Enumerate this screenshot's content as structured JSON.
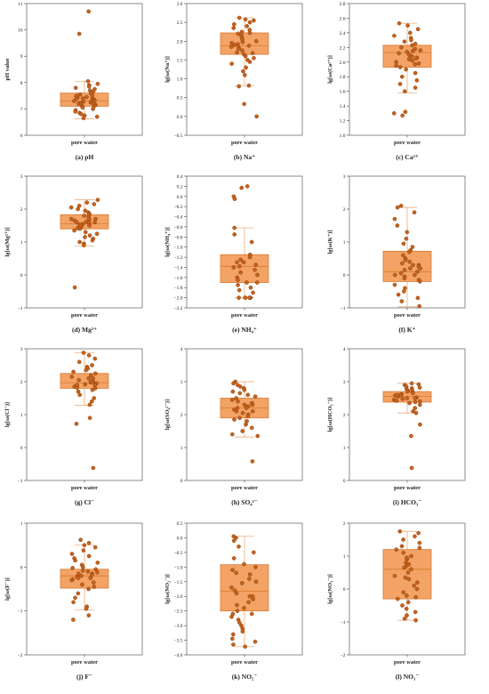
{
  "colors": {
    "box_fill": "#f2a365",
    "box_edge": "#d97a32",
    "point_fill": "#c7611b",
    "point_edge": "#7a3808"
  },
  "chart_data": [
    {
      "type": "box",
      "caption": "(a) pH",
      "ylabel": "pH value",
      "xlabel": "pore water",
      "ylim": [
        6,
        11
      ],
      "ticks": [
        6,
        7,
        8,
        9,
        10,
        11
      ],
      "ticklabels": [
        "6",
        "7",
        "8",
        "9",
        "10",
        "11"
      ],
      "whisker_low": 6.62,
      "q1": 7.1,
      "median": 7.3,
      "q3": 7.6,
      "whisker_high": 8.05,
      "points": [
        10.7,
        9.85,
        8.05,
        7.95,
        7.9,
        7.85,
        7.8,
        7.75,
        7.7,
        7.65,
        7.6,
        7.55,
        7.5,
        7.48,
        7.45,
        7.42,
        7.4,
        7.38,
        7.35,
        7.32,
        7.3,
        7.28,
        7.25,
        7.22,
        7.2,
        7.18,
        7.15,
        7.12,
        7.1,
        7.05,
        7.0,
        6.95,
        6.9,
        6.85,
        6.8,
        6.75,
        6.7,
        6.65,
        7.6,
        7.5,
        7.4,
        7.3,
        7.2
      ]
    },
    {
      "type": "box",
      "caption": "(b) Na⁺",
      "ylabel": "lg[ω(Na⁺)]",
      "xlabel": "pore water",
      "ylim": [
        -0.5,
        3.0
      ],
      "ticks": [
        -0.5,
        0.0,
        0.5,
        1.0,
        1.5,
        2.0,
        2.5,
        3.0
      ],
      "ticklabels": [
        "−0.5",
        "0.0",
        "0.5",
        "1.0",
        "1.5",
        "2.0",
        "2.5",
        "3.0"
      ],
      "whisker_low": 0.82,
      "q1": 1.65,
      "median": 1.88,
      "q3": 2.22,
      "whisker_high": 2.62,
      "points": [
        2.62,
        2.58,
        2.55,
        2.5,
        2.45,
        2.4,
        2.35,
        2.3,
        2.25,
        2.22,
        2.2,
        2.15,
        2.1,
        2.05,
        2.0,
        1.98,
        1.95,
        1.92,
        1.9,
        1.88,
        1.85,
        1.82,
        1.8,
        1.75,
        1.7,
        1.68,
        1.65,
        1.6,
        1.55,
        1.5,
        1.45,
        1.4,
        1.3,
        1.2,
        1.1,
        0.82,
        0.8,
        0.33,
        0.0
      ]
    },
    {
      "type": "box",
      "caption": "(c) Ca²⁺",
      "ylabel": "lg[ω(Ca²⁺)]",
      "xlabel": "pore water",
      "ylim": [
        1.0,
        2.8
      ],
      "ticks": [
        1.0,
        1.2,
        1.4,
        1.6,
        1.8,
        2.0,
        2.2,
        2.4,
        2.6,
        2.8
      ],
      "ticklabels": [
        "1.0",
        "1.2",
        "1.4",
        "1.6",
        "1.8",
        "2.0",
        "2.2",
        "2.4",
        "2.6",
        "2.8"
      ],
      "whisker_low": 1.58,
      "q1": 1.93,
      "median": 2.13,
      "q3": 2.23,
      "whisker_high": 2.53,
      "points": [
        2.53,
        2.5,
        2.45,
        2.4,
        2.36,
        2.33,
        2.3,
        2.28,
        2.25,
        2.23,
        2.2,
        2.18,
        2.16,
        2.14,
        2.12,
        2.1,
        2.08,
        2.06,
        2.04,
        2.02,
        2.0,
        1.98,
        1.95,
        1.93,
        1.9,
        1.85,
        1.8,
        1.75,
        1.7,
        1.65,
        1.6,
        1.32,
        1.3,
        1.27,
        2.15,
        2.05,
        1.97
      ]
    },
    {
      "type": "box",
      "caption": "(d) Mg²⁺",
      "ylabel": "lg[ω(Mg²⁺)]",
      "xlabel": "pore water",
      "ylim": [
        -1,
        3
      ],
      "ticks": [
        -1,
        0,
        1,
        2,
        3
      ],
      "ticklabels": [
        "−1",
        "0",
        "1",
        "2",
        "3"
      ],
      "whisker_low": 0.88,
      "q1": 1.4,
      "median": 1.55,
      "q3": 1.83,
      "whisker_high": 2.28,
      "points": [
        2.28,
        2.2,
        2.15,
        2.1,
        2.05,
        2.0,
        1.95,
        1.9,
        1.85,
        1.82,
        1.8,
        1.75,
        1.7,
        1.68,
        1.65,
        1.62,
        1.6,
        1.58,
        1.55,
        1.52,
        1.5,
        1.48,
        1.45,
        1.42,
        1.4,
        1.35,
        1.3,
        1.25,
        1.2,
        1.15,
        1.1,
        1.05,
        1.0,
        0.95,
        0.9,
        -0.38,
        1.6,
        1.5,
        1.7
      ]
    },
    {
      "type": "box",
      "caption": "(e) NH₄⁺",
      "ylabel": "lg[ω(NH₄⁺)]",
      "xlabel": "pore water",
      "ylim": [
        -2.2,
        0.4
      ],
      "ticks": [
        -2.2,
        -2.0,
        -1.8,
        -1.6,
        -1.4,
        -1.2,
        -1.0,
        -0.8,
        -0.6,
        -0.4,
        -0.2,
        0.0,
        0.2,
        0.4
      ],
      "ticklabels": [
        "−2.2",
        "−2.0",
        "−1.8",
        "−1.6",
        "−1.4",
        "−1.2",
        "−1.0",
        "−0.8",
        "−0.6",
        "−0.4",
        "−0.2",
        "0.0",
        "0.2",
        "0.4"
      ],
      "whisker_low": -2.0,
      "q1": -1.7,
      "median": -1.38,
      "q3": -1.15,
      "whisker_high": -0.62,
      "points": [
        0.2,
        0.17,
        0.0,
        -0.05,
        -0.62,
        -0.75,
        -0.9,
        -1.15,
        -1.2,
        -1.25,
        -1.3,
        -1.3,
        -1.35,
        -1.38,
        -1.4,
        -1.45,
        -1.5,
        -1.55,
        -1.6,
        -1.65,
        -1.7,
        -1.7,
        -1.75,
        -1.8,
        -1.85,
        -1.9,
        -2.0,
        -2.0,
        -2.0,
        -2.0,
        -2.0,
        -2.0
      ]
    },
    {
      "type": "box",
      "caption": "(f) K⁺",
      "ylabel": "lg[ω(K⁺)]",
      "xlabel": "pore water",
      "ylim": [
        -1,
        3
      ],
      "ticks": [
        -1,
        0,
        1,
        2,
        3
      ],
      "ticklabels": [
        "−1",
        "0",
        "1",
        "2",
        "3"
      ],
      "whisker_low": -0.97,
      "q1": -0.2,
      "median": 0.1,
      "q3": 0.72,
      "whisker_high": 2.05,
      "points": [
        2.1,
        2.05,
        1.9,
        1.7,
        1.5,
        1.3,
        1.1,
        0.95,
        0.85,
        0.75,
        0.7,
        0.6,
        0.5,
        0.45,
        0.4,
        0.35,
        0.3,
        0.25,
        0.2,
        0.15,
        0.1,
        0.05,
        0.0,
        -0.05,
        -0.1,
        -0.15,
        -0.2,
        -0.3,
        -0.4,
        -0.5,
        -0.6,
        -0.7,
        -0.8,
        -0.95,
        0.3,
        0.2,
        0.0
      ]
    },
    {
      "type": "box",
      "caption": "(g) Cl⁻",
      "ylabel": "lg[ω(Cl⁻)]",
      "xlabel": "pore water",
      "ylim": [
        -1,
        3
      ],
      "ticks": [
        -1,
        0,
        1,
        2,
        3
      ],
      "ticklabels": [
        "−1",
        "0",
        "1",
        "2",
        "3"
      ],
      "whisker_low": 1.28,
      "q1": 1.8,
      "median": 1.97,
      "q3": 2.25,
      "whisker_high": 2.88,
      "points": [
        2.88,
        2.8,
        2.7,
        2.6,
        2.5,
        2.45,
        2.4,
        2.35,
        2.3,
        2.25,
        2.2,
        2.15,
        2.1,
        2.05,
        2.0,
        1.98,
        1.95,
        1.92,
        1.9,
        1.88,
        1.85,
        1.82,
        1.8,
        1.75,
        1.7,
        1.6,
        1.5,
        1.4,
        1.3,
        0.9,
        0.72,
        -0.62,
        2.1,
        2.0,
        1.9
      ]
    },
    {
      "type": "box",
      "caption": "(h) SO₄²⁻",
      "ylabel": "lg[ω(SO₄²⁻)]",
      "xlabel": "pore water",
      "ylim": [
        0,
        4
      ],
      "ticks": [
        0,
        1,
        2,
        3,
        4
      ],
      "ticklabels": [
        "0",
        "1",
        "2",
        "3",
        "4"
      ],
      "whisker_low": 1.32,
      "q1": 1.9,
      "median": 2.2,
      "q3": 2.5,
      "whisker_high": 3.0,
      "points": [
        3.0,
        2.95,
        2.9,
        2.85,
        2.8,
        2.75,
        2.7,
        2.65,
        2.6,
        2.55,
        2.5,
        2.45,
        2.4,
        2.35,
        2.3,
        2.25,
        2.2,
        2.15,
        2.1,
        2.05,
        2.0,
        1.95,
        1.9,
        1.85,
        1.8,
        1.7,
        1.6,
        1.5,
        1.4,
        1.35,
        0.58,
        2.3,
        2.2,
        2.1
      ]
    },
    {
      "type": "box",
      "caption": "(i) HCO₃⁻",
      "ylabel": "lg[ω(HCO₃⁻)]",
      "xlabel": "pore water",
      "ylim": [
        0,
        4
      ],
      "ticks": [
        0,
        1,
        2,
        3,
        4
      ],
      "ticklabels": [
        "0",
        "1",
        "2",
        "3",
        "4"
      ],
      "whisker_low": 2.05,
      "q1": 2.38,
      "median": 2.55,
      "q3": 2.7,
      "whisker_high": 2.95,
      "points": [
        2.95,
        2.92,
        2.9,
        2.85,
        2.82,
        2.8,
        2.78,
        2.75,
        2.72,
        2.7,
        2.68,
        2.65,
        2.62,
        2.6,
        2.58,
        2.55,
        2.52,
        2.5,
        2.48,
        2.45,
        2.42,
        2.4,
        2.38,
        2.35,
        2.3,
        2.2,
        2.1,
        2.05,
        1.7,
        1.35,
        0.38,
        2.6,
        2.5
      ]
    },
    {
      "type": "box",
      "caption": "(j) F⁻",
      "ylabel": "lg[ω(F⁻)]",
      "xlabel": "pore water",
      "ylim": [
        -2,
        1
      ],
      "ticks": [
        -2,
        -1,
        0,
        1
      ],
      "ticklabels": [
        "−2",
        "−1",
        "0",
        "1"
      ],
      "whisker_low": -0.98,
      "q1": -0.48,
      "median": -0.2,
      "q3": -0.05,
      "whisker_high": 0.5,
      "points": [
        0.62,
        0.55,
        0.5,
        0.45,
        0.38,
        0.3,
        0.25,
        0.2,
        0.15,
        0.1,
        0.05,
        0.0,
        -0.02,
        -0.05,
        -0.08,
        -0.1,
        -0.12,
        -0.15,
        -0.18,
        -0.2,
        -0.22,
        -0.25,
        -0.28,
        -0.3,
        -0.35,
        -0.4,
        -0.45,
        -0.5,
        -0.6,
        -0.7,
        -0.8,
        -0.9,
        -0.95,
        -1.1,
        -1.2,
        -0.15,
        -0.25
      ]
    },
    {
      "type": "box",
      "caption": "(k) NO₂⁻",
      "ylabel": "lg[ω(NO₂⁻)]",
      "xlabel": "pore water",
      "ylim": [
        -4.0,
        0.5
      ],
      "ticks": [
        -4.0,
        -3.5,
        -3.0,
        -2.5,
        -2.0,
        -1.5,
        -1.0,
        -0.5,
        0.0,
        0.5
      ],
      "ticklabels": [
        "−4.0",
        "−3.5",
        "−3.0",
        "−2.5",
        "−2.0",
        "−1.5",
        "−1.0",
        "−0.5",
        "0.0",
        "0.5"
      ],
      "whisker_low": -3.72,
      "q1": -2.5,
      "median": -1.82,
      "q3": -0.92,
      "whisker_high": 0.05,
      "points": [
        0.05,
        0.0,
        -0.1,
        -0.3,
        -0.5,
        -0.7,
        -0.9,
        -1.0,
        -1.1,
        -1.25,
        -1.4,
        -1.55,
        -1.7,
        -1.8,
        -1.9,
        -2.0,
        -2.1,
        -2.2,
        -2.3,
        -2.4,
        -2.5,
        -2.6,
        -2.7,
        -2.8,
        -2.9,
        -3.0,
        -3.1,
        -3.2,
        -3.3,
        -3.45,
        -3.55,
        -3.65,
        -3.72,
        -1.5,
        -2.0,
        -1.2,
        -2.6
      ]
    },
    {
      "type": "box",
      "caption": "(l) NO₃⁻",
      "ylabel": "lg[ω(NO₃⁻)]",
      "xlabel": "pore water",
      "ylim": [
        -2,
        2
      ],
      "ticks": [
        -2,
        -1,
        0,
        1,
        2
      ],
      "ticklabels": [
        "−2",
        "−1",
        "0",
        "1",
        "2"
      ],
      "whisker_low": -0.95,
      "q1": -0.3,
      "median": 0.6,
      "q3": 1.2,
      "whisker_high": 1.75,
      "points": [
        1.75,
        1.7,
        1.6,
        1.5,
        1.4,
        1.3,
        1.2,
        1.1,
        1.0,
        0.9,
        0.8,
        0.7,
        0.6,
        0.5,
        0.4,
        0.3,
        0.2,
        0.1,
        0.0,
        -0.1,
        -0.2,
        -0.3,
        -0.4,
        -0.5,
        -0.6,
        -0.7,
        -0.8,
        -0.9,
        -0.95,
        1.25,
        0.95,
        0.65,
        0.35,
        -0.25,
        0.75
      ]
    }
  ]
}
